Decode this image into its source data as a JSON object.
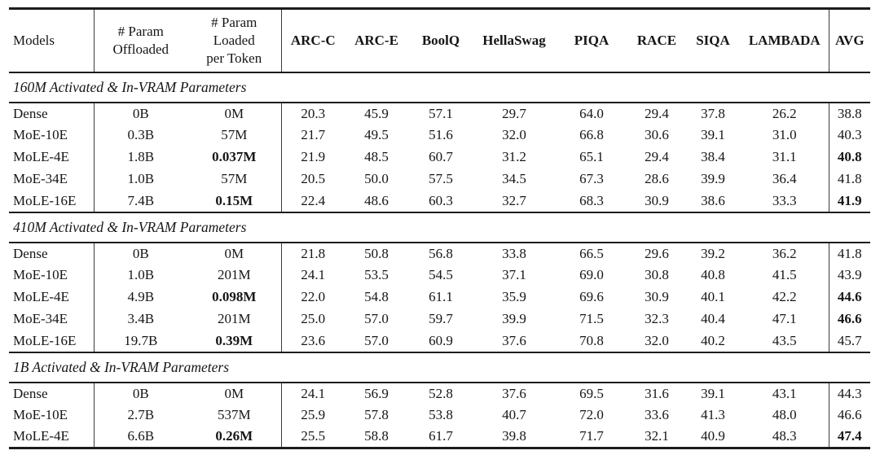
{
  "table": {
    "header": {
      "models": "Models",
      "param_offloaded_lines": [
        "# Param",
        "Offloaded"
      ],
      "param_loaded_lines": [
        "# Param",
        "Loaded",
        "per Token"
      ],
      "benchmarks": [
        "ARC-C",
        "ARC-E",
        "BoolQ",
        "HellaSwag",
        "PIQA",
        "RACE",
        "SIQA",
        "LAMBADA"
      ],
      "avg": "AVG"
    },
    "sections": [
      {
        "title": "160M Activated & In-VRAM Parameters",
        "rows": [
          {
            "model": "Dense",
            "offloaded": "0B",
            "loaded": "0M",
            "loaded_bold": false,
            "scores": [
              "20.3",
              "45.9",
              "57.1",
              "29.7",
              "64.0",
              "29.4",
              "37.8",
              "26.2"
            ],
            "avg": "38.8",
            "avg_bold": false
          },
          {
            "model": "MoE-10E",
            "offloaded": "0.3B",
            "loaded": "57M",
            "loaded_bold": false,
            "scores": [
              "21.7",
              "49.5",
              "51.6",
              "32.0",
              "66.8",
              "30.6",
              "39.1",
              "31.0"
            ],
            "avg": "40.3",
            "avg_bold": false
          },
          {
            "model": "MoLE-4E",
            "offloaded": "1.8B",
            "loaded": "0.037M",
            "loaded_bold": true,
            "scores": [
              "21.9",
              "48.5",
              "60.7",
              "31.2",
              "65.1",
              "29.4",
              "38.4",
              "31.1"
            ],
            "avg": "40.8",
            "avg_bold": true
          },
          {
            "model": "MoE-34E",
            "offloaded": "1.0B",
            "loaded": "57M",
            "loaded_bold": false,
            "scores": [
              "20.5",
              "50.0",
              "57.5",
              "34.5",
              "67.3",
              "28.6",
              "39.9",
              "36.4"
            ],
            "avg": "41.8",
            "avg_bold": false
          },
          {
            "model": "MoLE-16E",
            "offloaded": "7.4B",
            "loaded": "0.15M",
            "loaded_bold": true,
            "scores": [
              "22.4",
              "48.6",
              "60.3",
              "32.7",
              "68.3",
              "30.9",
              "38.6",
              "33.3"
            ],
            "avg": "41.9",
            "avg_bold": true
          }
        ]
      },
      {
        "title": "410M Activated & In-VRAM Parameters",
        "rows": [
          {
            "model": "Dense",
            "offloaded": "0B",
            "loaded": "0M",
            "loaded_bold": false,
            "scores": [
              "21.8",
              "50.8",
              "56.8",
              "33.8",
              "66.5",
              "29.6",
              "39.2",
              "36.2"
            ],
            "avg": "41.8",
            "avg_bold": false
          },
          {
            "model": "MoE-10E",
            "offloaded": "1.0B",
            "loaded": "201M",
            "loaded_bold": false,
            "scores": [
              "24.1",
              "53.5",
              "54.5",
              "37.1",
              "69.0",
              "30.8",
              "40.8",
              "41.5"
            ],
            "avg": "43.9",
            "avg_bold": false
          },
          {
            "model": "MoLE-4E",
            "offloaded": "4.9B",
            "loaded": "0.098M",
            "loaded_bold": true,
            "scores": [
              "22.0",
              "54.8",
              "61.1",
              "35.9",
              "69.6",
              "30.9",
              "40.1",
              "42.2"
            ],
            "avg": "44.6",
            "avg_bold": true
          },
          {
            "model": "MoE-34E",
            "offloaded": "3.4B",
            "loaded": "201M",
            "loaded_bold": false,
            "scores": [
              "25.0",
              "57.0",
              "59.7",
              "39.9",
              "71.5",
              "32.3",
              "40.4",
              "47.1"
            ],
            "avg": "46.6",
            "avg_bold": true
          },
          {
            "model": "MoLE-16E",
            "offloaded": "19.7B",
            "loaded": "0.39M",
            "loaded_bold": true,
            "scores": [
              "23.6",
              "57.0",
              "60.9",
              "37.6",
              "70.8",
              "32.0",
              "40.2",
              "43.5"
            ],
            "avg": "45.7",
            "avg_bold": false
          }
        ]
      },
      {
        "title": "1B Activated & In-VRAM Parameters",
        "rows": [
          {
            "model": "Dense",
            "offloaded": "0B",
            "loaded": "0M",
            "loaded_bold": false,
            "scores": [
              "24.1",
              "56.9",
              "52.8",
              "37.6",
              "69.5",
              "31.6",
              "39.1",
              "43.1"
            ],
            "avg": "44.3",
            "avg_bold": false
          },
          {
            "model": "MoE-10E",
            "offloaded": "2.7B",
            "loaded": "537M",
            "loaded_bold": false,
            "scores": [
              "25.9",
              "57.8",
              "53.8",
              "40.7",
              "72.0",
              "33.6",
              "41.3",
              "48.0"
            ],
            "avg": "46.6",
            "avg_bold": false
          },
          {
            "model": "MoLE-4E",
            "offloaded": "6.6B",
            "loaded": "0.26M",
            "loaded_bold": true,
            "scores": [
              "25.5",
              "58.8",
              "61.7",
              "39.8",
              "71.7",
              "32.1",
              "40.9",
              "48.3"
            ],
            "avg": "47.4",
            "avg_bold": true
          }
        ]
      }
    ],
    "colors": {
      "rule": "#1c1c1c",
      "text": "#161616",
      "background": "#ffffff"
    }
  }
}
